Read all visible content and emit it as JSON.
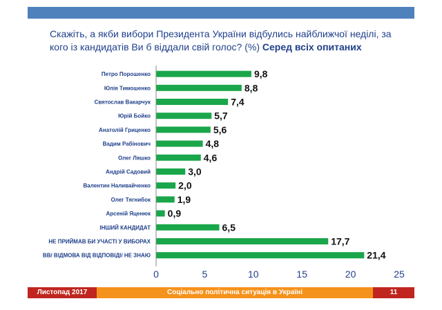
{
  "title": {
    "main": "Скажіть, а якби вибори Президента України відбулись найближчої неділі, за кого із кандидатів Ви б віддали свій голос? (%)",
    "subtitle": "Серед всіх опитаних"
  },
  "footer": {
    "date": "Листопад 2017",
    "center": "Соціально політична ситуація в Україні",
    "page_number": "11"
  },
  "colors": {
    "bar": "#1aa64a",
    "title": "#1f3f8a",
    "label": "#1f3f8a",
    "top_bar": "#4f81bd"
  },
  "chart_data": {
    "type": "bar",
    "orientation": "horizontal",
    "categories": [
      "Петро Порошенко",
      "Юлія Тимошенко",
      "Святослав Вакарчук",
      "Юрій Бойко",
      "Анатолій Гриценко",
      "Вадим Рабінович",
      "Олег Ляшко",
      "Андрій Садовий",
      "Валентин Наливайченко",
      "Олег Тягнибок",
      "Арсеній Яценюк",
      "ІНШИЙ КАНДИДАТ",
      "НЕ ПРИЙМАВ БИ УЧАСТІ У ВИБОРАХ",
      "ВВ/ ВІДМОВА ВІД ВІДПОВІДІ/ НЕ ЗНАЮ"
    ],
    "values": [
      9.8,
      8.8,
      7.4,
      5.7,
      5.6,
      4.8,
      4.6,
      3.0,
      2.0,
      1.9,
      0.9,
      6.5,
      17.7,
      21.4
    ],
    "value_labels": [
      "9,8",
      "8,8",
      "7,4",
      "5,7",
      "5,6",
      "4,8",
      "4,6",
      "3,0",
      "2,0",
      "1,9",
      "0,9",
      "6,5",
      "17,7",
      "21,4"
    ],
    "xlim": [
      0,
      25
    ],
    "xticks": [
      0,
      5,
      10,
      15,
      20,
      25
    ],
    "grid": false,
    "xlabel": "",
    "ylabel": ""
  }
}
